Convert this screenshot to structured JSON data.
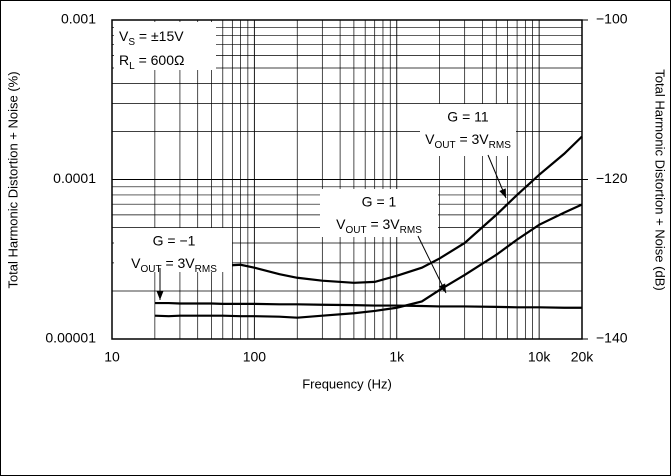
{
  "chart_data": {
    "type": "line",
    "x_label": "Frequency (Hz)",
    "y_label": "Total Harmonic Distortion + Noise (%)",
    "y2_label": "Total Harmonic Distortion + Noise (dB)",
    "x_log": true,
    "y_log": true,
    "grid": true,
    "minor_grid": true,
    "xlim": [
      10,
      20000
    ],
    "xticks": [
      10,
      100,
      {
        "value": 1000,
        "label": "1k"
      },
      {
        "value": 10000,
        "label": "10k"
      },
      {
        "value": 20000,
        "label": "20k"
      }
    ],
    "ylim": [
      1e-05,
      0.001
    ],
    "yticks": [
      0.001,
      0.0001,
      {
        "value": 1e-05,
        "label": "0.00001"
      }
    ],
    "y2lim": [
      -140,
      -100
    ],
    "y2ticks": [
      {
        "value": -100,
        "label": "−100"
      },
      {
        "value": -120,
        "label": "−120"
      },
      {
        "value": -140,
        "label": "−140"
      }
    ],
    "conditions": [
      [
        {
          "text": "V"
        },
        {
          "text": "S",
          "sub": true
        },
        {
          "text": " = ±15V"
        }
      ],
      [
        {
          "text": "R"
        },
        {
          "text": "L",
          "sub": true
        },
        {
          "text": " = 600Ω"
        }
      ]
    ],
    "x": [
      20,
      25,
      30,
      40,
      50,
      60,
      80,
      100,
      150,
      200,
      300,
      500,
      700,
      1000,
      1500,
      2000,
      3000,
      5000,
      7000,
      10000,
      15000,
      20000
    ],
    "series": [
      {
        "name": "G = 11",
        "color": "#000000",
        "note": [
          {
            "text": "V"
          },
          {
            "text": "OUT",
            "sub": true
          },
          {
            "text": " = 3V"
          },
          {
            "text": "RMS",
            "sub": true
          }
        ],
        "values": [
          3e-05,
          2.68e-05,
          2.7e-05,
          2.75e-05,
          2.8e-05,
          2.88e-05,
          2.92e-05,
          2.8e-05,
          2.55e-05,
          2.42e-05,
          2.32e-05,
          2.25e-05,
          2.28e-05,
          2.49e-05,
          2.8e-05,
          3.2e-05,
          4e-05,
          6e-05,
          8e-05,
          0.000107,
          0.000145,
          0.000186
        ]
      },
      {
        "name": "G = 1",
        "color": "#000000",
        "note": [
          {
            "text": "V"
          },
          {
            "text": "OUT",
            "sub": true
          },
          {
            "text": " = 3V"
          },
          {
            "text": "RMS",
            "sub": true
          }
        ],
        "values": [
          1.4e-05,
          1.39e-05,
          1.4e-05,
          1.4e-05,
          1.4e-05,
          1.4e-05,
          1.39e-05,
          1.39e-05,
          1.38e-05,
          1.36e-05,
          1.4e-05,
          1.45e-05,
          1.5e-05,
          1.57e-05,
          1.72e-05,
          2.03e-05,
          2.52e-05,
          3.37e-05,
          4.2e-05,
          5.2e-05,
          6.2e-05,
          6.97e-05
        ]
      },
      {
        "name": "G = −1",
        "color": "#000000",
        "note": [
          {
            "text": "V"
          },
          {
            "text": "OUT",
            "sub": true
          },
          {
            "text": " = 3V"
          },
          {
            "text": "RMS",
            "sub": true
          }
        ],
        "values": [
          1.68e-05,
          1.68e-05,
          1.67e-05,
          1.67e-05,
          1.67e-05,
          1.66e-05,
          1.66e-05,
          1.66e-05,
          1.65e-05,
          1.65e-05,
          1.64e-05,
          1.63e-05,
          1.62e-05,
          1.62e-05,
          1.61e-05,
          1.6e-05,
          1.6e-05,
          1.59e-05,
          1.58e-05,
          1.58e-05,
          1.57e-05,
          1.57e-05
        ]
      }
    ]
  }
}
